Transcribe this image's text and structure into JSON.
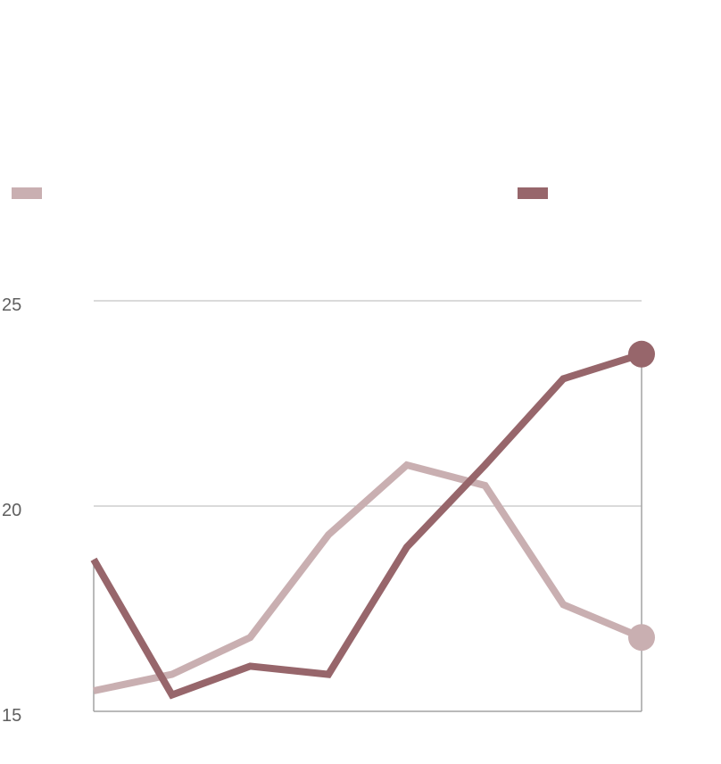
{
  "chart_data": {
    "type": "line",
    "title": "",
    "xlabel": "",
    "ylabel": "",
    "ylim": [
      15,
      25
    ],
    "yticks": [
      15,
      20,
      25
    ],
    "grid": true,
    "legend_placement": "top",
    "x": [
      1,
      2,
      3,
      4,
      5,
      6,
      7,
      8
    ],
    "series": [
      {
        "color": "#c9afb1",
        "values": [
          15.5,
          15.9,
          16.8,
          19.3,
          21.0,
          20.5,
          17.6,
          16.8
        ]
      },
      {
        "color": "#97666b",
        "values": [
          18.7,
          15.4,
          16.1,
          15.9,
          19.0,
          21.0,
          23.1,
          23.7
        ]
      }
    ]
  }
}
